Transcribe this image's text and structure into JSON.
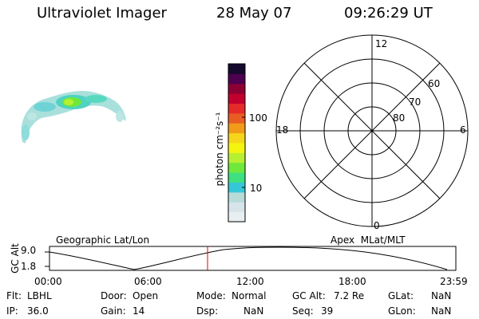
{
  "header": {
    "instrument": "Ultraviolet Imager",
    "date": "28 May 07",
    "time": "09:26:29 UT"
  },
  "colorbar": {
    "unit_label": "photon cm⁻²s⁻¹",
    "tick_100": "100",
    "tick_10": "10",
    "colors": [
      "#e8eff0",
      "#d7e4ea",
      "#b8dbd8",
      "#35c6d8",
      "#3fe07f",
      "#6fe83c",
      "#b7f031",
      "#f4f50f",
      "#f6d61a",
      "#f19b18",
      "#ea5d22",
      "#e52a2a",
      "#c2002d",
      "#8d0033",
      "#4d0050",
      "#150a2e"
    ]
  },
  "polar_plot": {
    "mlt_top": "12",
    "mlt_left": "18",
    "mlt_right": "6",
    "mlt_bottom": "0",
    "lat_60": "60",
    "lat_70": "70",
    "lat_80": "80"
  },
  "timeline": {
    "left_title": "Geographic Lat/Lon",
    "right_title": "Apex  MLat/MLT",
    "yaxis_label": "GC Alt",
    "y_max": "9.0",
    "y_min": "1.8",
    "xticks": [
      "00:00",
      "06:00",
      "12:00",
      "18:00",
      "23:59"
    ],
    "marker_color": "#e00000"
  },
  "status": {
    "flt_label": "Flt:",
    "flt_value": "LBHL",
    "ip_label": "IP:",
    "ip_value": "36.0",
    "door_label": "Door:",
    "door_value": "Open",
    "gain_label": "Gain:",
    "gain_value": "14",
    "mode_label": "Mode:",
    "mode_value": "Normal",
    "dsp_label": "Dsp:",
    "dsp_value": "NaN",
    "gcalt_label": "GC Alt:",
    "gcalt_value": "7.2 Re",
    "seq_label": "Seq:",
    "seq_value": "39",
    "glat_label": "GLat:",
    "glat_value": "NaN",
    "glon_label": "GLon:",
    "glon_value": "NaN"
  }
}
